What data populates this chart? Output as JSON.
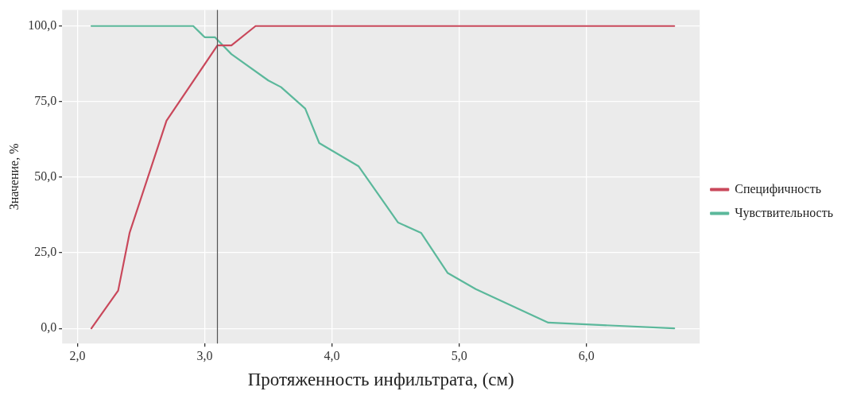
{
  "chart_data": {
    "type": "line",
    "xlabel": "Протяженность инфильтрата, (см)",
    "ylabel": "Значение, %",
    "xlim": [
      1.88,
      6.89
    ],
    "ylim": [
      -5,
      105.3
    ],
    "xticks": [
      {
        "value": 2,
        "label": "2,0"
      },
      {
        "value": 3,
        "label": "3,0"
      },
      {
        "value": 4,
        "label": "4,0"
      },
      {
        "value": 5,
        "label": "5,0"
      },
      {
        "value": 6,
        "label": "6,0"
      }
    ],
    "yticks": [
      {
        "value": 0,
        "label": "0,0"
      },
      {
        "value": 25,
        "label": "25,0"
      },
      {
        "value": 50,
        "label": "50,0"
      },
      {
        "value": 75,
        "label": "75,0"
      },
      {
        "value": 100,
        "label": "100,0"
      }
    ],
    "grid": true,
    "legend": "right",
    "marker": "none",
    "line_style": "solid",
    "series": [
      {
        "name": "Специфичность",
        "color": "#c9485b",
        "x": [
          2.11,
          2.32,
          2.41,
          2.7,
          3.1,
          3.21,
          3.4,
          6.69
        ],
        "values": [
          0,
          12.5,
          31.6,
          68.7,
          93.6,
          93.6,
          100,
          100
        ]
      },
      {
        "name": "Чувствительность",
        "color": "#5bb89b",
        "x": [
          2.11,
          2.91,
          3.0,
          3.08,
          3.21,
          3.5,
          3.6,
          3.79,
          3.9,
          4.21,
          4.52,
          4.7,
          4.91,
          5.13,
          5.7,
          6.69
        ],
        "values": [
          100,
          100,
          96.3,
          96.3,
          90.7,
          82,
          79.8,
          72.7,
          61.3,
          53.6,
          35,
          31.6,
          18.3,
          13,
          1.9,
          0
        ]
      }
    ],
    "ref_lines": [
      {
        "axis": "x",
        "value": 3.1,
        "color": "#555555"
      }
    ]
  }
}
